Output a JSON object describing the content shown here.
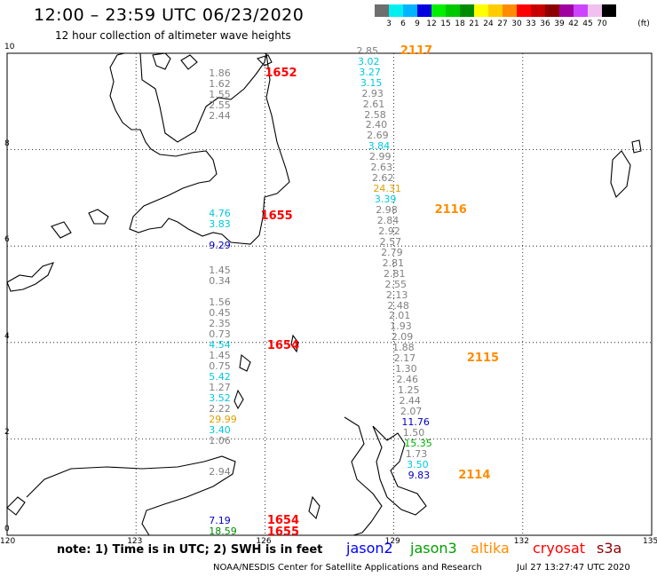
{
  "title": "12:00 – 23:59 UTC 06/23/2020",
  "subtitle": "12 hour collection of altimeter wave heights",
  "colorbar": {
    "unit": "(ft)",
    "labels": [
      "3",
      "6",
      "9",
      "12",
      "15",
      "18",
      "21",
      "24",
      "27",
      "30",
      "33",
      "36",
      "39",
      "42",
      "45",
      "70"
    ],
    "colors": [
      "#6e6e6e",
      "#00f0f0",
      "#00b4ff",
      "#0000e0",
      "#00f000",
      "#00c800",
      "#008c00",
      "#ffff00",
      "#ffcc00",
      "#ff8c00",
      "#ff0000",
      "#c80000",
      "#8c0000",
      "#a000a0",
      "#cc44ff",
      "#f0c0f0",
      "#000000"
    ]
  },
  "axes": {
    "lon_labels": [
      "120",
      "123",
      "126",
      "129",
      "132",
      "135"
    ],
    "lat_labels": [
      "10",
      "8",
      "6",
      "4",
      "2",
      "0"
    ]
  },
  "note": "note: 1) Time is in UTC; 2) SWH is in feet",
  "satellites": [
    {
      "name": "jason2",
      "color": "#0000ff"
    },
    {
      "name": "jason3",
      "color": "#00a000"
    },
    {
      "name": "altika",
      "color": "#ff8c00"
    },
    {
      "name": "cryosat",
      "color": "#ff0000"
    },
    {
      "name": "s3a",
      "color": "#8c0000"
    }
  ],
  "footer": {
    "center": "NOAA/NESDIS Center for Satellite Applications and Research",
    "timestamp": "Jul 27 13:27:47 UTC 2020"
  },
  "track_a": {
    "lon": 125.15,
    "points": [
      {
        "lat": 9.58,
        "v": "1.86",
        "c": "#808080"
      },
      {
        "lat": 9.36,
        "v": "1.62",
        "c": "#808080"
      },
      {
        "lat": 9.14,
        "v": "1.55",
        "c": "#808080"
      },
      {
        "lat": 8.92,
        "v": "2.55",
        "c": "#808080"
      },
      {
        "lat": 8.7,
        "v": "2.44",
        "c": "#808080"
      },
      {
        "lat": 6.66,
        "v": "4.76",
        "c": "#00c8e0"
      },
      {
        "lat": 6.44,
        "v": "3.83",
        "c": "#00c8e0"
      },
      {
        "lat": 6.0,
        "v": "9.29",
        "c": "#0000c0"
      },
      {
        "lat": 5.48,
        "v": "1.45",
        "c": "#808080"
      },
      {
        "lat": 5.26,
        "v": "0.34",
        "c": "#808080"
      },
      {
        "lat": 4.82,
        "v": "1.56",
        "c": "#808080"
      },
      {
        "lat": 4.6,
        "v": "0.45",
        "c": "#808080"
      },
      {
        "lat": 4.38,
        "v": "2.35",
        "c": "#808080"
      },
      {
        "lat": 4.16,
        "v": "0.73",
        "c": "#808080"
      },
      {
        "lat": 3.94,
        "v": "4.54",
        "c": "#00c8e0"
      },
      {
        "lat": 3.72,
        "v": "1.45",
        "c": "#808080"
      },
      {
        "lat": 3.5,
        "v": "0.75",
        "c": "#808080"
      },
      {
        "lat": 3.28,
        "v": "5.42",
        "c": "#00c8e0"
      },
      {
        "lat": 3.06,
        "v": "1.27",
        "c": "#808080"
      },
      {
        "lat": 2.84,
        "v": "3.52",
        "c": "#00c8e0"
      },
      {
        "lat": 2.62,
        "v": "2.22",
        "c": "#808080"
      },
      {
        "lat": 2.4,
        "v": "29.99",
        "c": "#e0a000"
      },
      {
        "lat": 2.18,
        "v": "3.40",
        "c": "#00c8e0"
      },
      {
        "lat": 1.96,
        "v": "1.06",
        "c": "#808080"
      },
      {
        "lat": 1.3,
        "v": "2.94",
        "c": "#808080"
      },
      {
        "lat": 0.3,
        "v": "7.19",
        "c": "#0000c0"
      },
      {
        "lat": 0.08,
        "v": "18.59",
        "c": "#008c00"
      }
    ]
  },
  "track_b": {
    "points": [
      {
        "lat": 10.04,
        "lon": 128.42,
        "v": "2.85",
        "c": "#808080"
      },
      {
        "lat": 9.82,
        "lon": 128.45,
        "v": "3.02",
        "c": "#00c8e0"
      },
      {
        "lat": 9.6,
        "lon": 128.48,
        "v": "3.27",
        "c": "#00c8e0"
      },
      {
        "lat": 9.38,
        "lon": 128.51,
        "v": "3.15",
        "c": "#00c8e0"
      },
      {
        "lat": 9.16,
        "lon": 128.54,
        "v": "2.93",
        "c": "#808080"
      },
      {
        "lat": 8.94,
        "lon": 128.57,
        "v": "2.61",
        "c": "#808080"
      },
      {
        "lat": 8.72,
        "lon": 128.6,
        "v": "2.58",
        "c": "#808080"
      },
      {
        "lat": 8.5,
        "lon": 128.63,
        "v": "2.40",
        "c": "#808080"
      },
      {
        "lat": 8.28,
        "lon": 128.66,
        "v": "2.69",
        "c": "#808080"
      },
      {
        "lat": 8.06,
        "lon": 128.69,
        "v": "3.84",
        "c": "#00c8e0"
      },
      {
        "lat": 7.84,
        "lon": 128.72,
        "v": "2.99",
        "c": "#808080"
      },
      {
        "lat": 7.62,
        "lon": 128.75,
        "v": "2.63",
        "c": "#808080"
      },
      {
        "lat": 7.4,
        "lon": 128.78,
        "v": "2.62",
        "c": "#808080"
      },
      {
        "lat": 7.18,
        "lon": 128.81,
        "v": "24.31",
        "c": "#e0a000"
      },
      {
        "lat": 6.96,
        "lon": 128.84,
        "v": "3.39",
        "c": "#00c8e0"
      },
      {
        "lat": 6.74,
        "lon": 128.87,
        "v": "2.98",
        "c": "#808080"
      },
      {
        "lat": 6.52,
        "lon": 128.9,
        "v": "2.84",
        "c": "#808080"
      },
      {
        "lat": 6.3,
        "lon": 128.93,
        "v": "2.92",
        "c": "#808080"
      },
      {
        "lat": 6.08,
        "lon": 128.96,
        "v": "2.57",
        "c": "#808080"
      },
      {
        "lat": 5.86,
        "lon": 128.99,
        "v": "2.79",
        "c": "#808080"
      },
      {
        "lat": 5.64,
        "lon": 129.02,
        "v": "2.81",
        "c": "#808080"
      },
      {
        "lat": 5.42,
        "lon": 129.05,
        "v": "2.81",
        "c": "#808080"
      },
      {
        "lat": 5.2,
        "lon": 129.08,
        "v": "2.55",
        "c": "#808080"
      },
      {
        "lat": 4.98,
        "lon": 129.11,
        "v": "2.13",
        "c": "#808080"
      },
      {
        "lat": 4.76,
        "lon": 129.14,
        "v": "2.48",
        "c": "#808080"
      },
      {
        "lat": 4.54,
        "lon": 129.17,
        "v": "2.01",
        "c": "#808080"
      },
      {
        "lat": 4.32,
        "lon": 129.2,
        "v": "1.93",
        "c": "#808080"
      },
      {
        "lat": 4.1,
        "lon": 129.23,
        "v": "2.09",
        "c": "#808080"
      },
      {
        "lat": 3.88,
        "lon": 129.26,
        "v": "1.88",
        "c": "#808080"
      },
      {
        "lat": 3.66,
        "lon": 129.29,
        "v": "2.17",
        "c": "#808080"
      },
      {
        "lat": 3.44,
        "lon": 129.32,
        "v": "1.30",
        "c": "#808080"
      },
      {
        "lat": 3.22,
        "lon": 129.35,
        "v": "2.46",
        "c": "#808080"
      },
      {
        "lat": 3.0,
        "lon": 129.38,
        "v": "1.25",
        "c": "#808080"
      },
      {
        "lat": 2.78,
        "lon": 129.41,
        "v": "2.44",
        "c": "#808080"
      },
      {
        "lat": 2.56,
        "lon": 129.44,
        "v": "2.07",
        "c": "#808080"
      },
      {
        "lat": 2.34,
        "lon": 129.47,
        "v": "11.76",
        "c": "#0000c0"
      },
      {
        "lat": 2.12,
        "lon": 129.5,
        "v": "1.50",
        "c": "#808080"
      },
      {
        "lat": 1.9,
        "lon": 129.53,
        "v": "15.35",
        "c": "#00b000"
      },
      {
        "lat": 1.68,
        "lon": 129.56,
        "v": "1.73",
        "c": "#808080"
      },
      {
        "lat": 1.46,
        "lon": 129.59,
        "v": "3.50",
        "c": "#00c8e0"
      },
      {
        "lat": 1.24,
        "lon": 129.62,
        "v": "9.83",
        "c": "#0000c0"
      }
    ]
  },
  "time_labels": [
    {
      "text": "1652",
      "lat": 9.58,
      "lon": 126.0,
      "c": "#ff0000"
    },
    {
      "text": "1655",
      "lat": 6.62,
      "lon": 125.9,
      "c": "#ff0000"
    },
    {
      "text": "1654",
      "lat": 3.92,
      "lon": 126.05,
      "c": "#ff0000"
    },
    {
      "text": "1654",
      "lat": 0.3,
      "lon": 126.05,
      "c": "#ff0000"
    },
    {
      "text": "1655",
      "lat": 0.06,
      "lon": 126.05,
      "c": "#ff0000"
    },
    {
      "text": "2117",
      "lat": 10.04,
      "lon": 129.15,
      "c": "#ff8c00"
    },
    {
      "text": "2116",
      "lat": 6.74,
      "lon": 129.95,
      "c": "#ff8c00"
    },
    {
      "text": "2115",
      "lat": 3.66,
      "lon": 130.7,
      "c": "#ff8c00"
    },
    {
      "text": "2114",
      "lat": 1.24,
      "lon": 130.5,
      "c": "#ff8c00"
    }
  ]
}
